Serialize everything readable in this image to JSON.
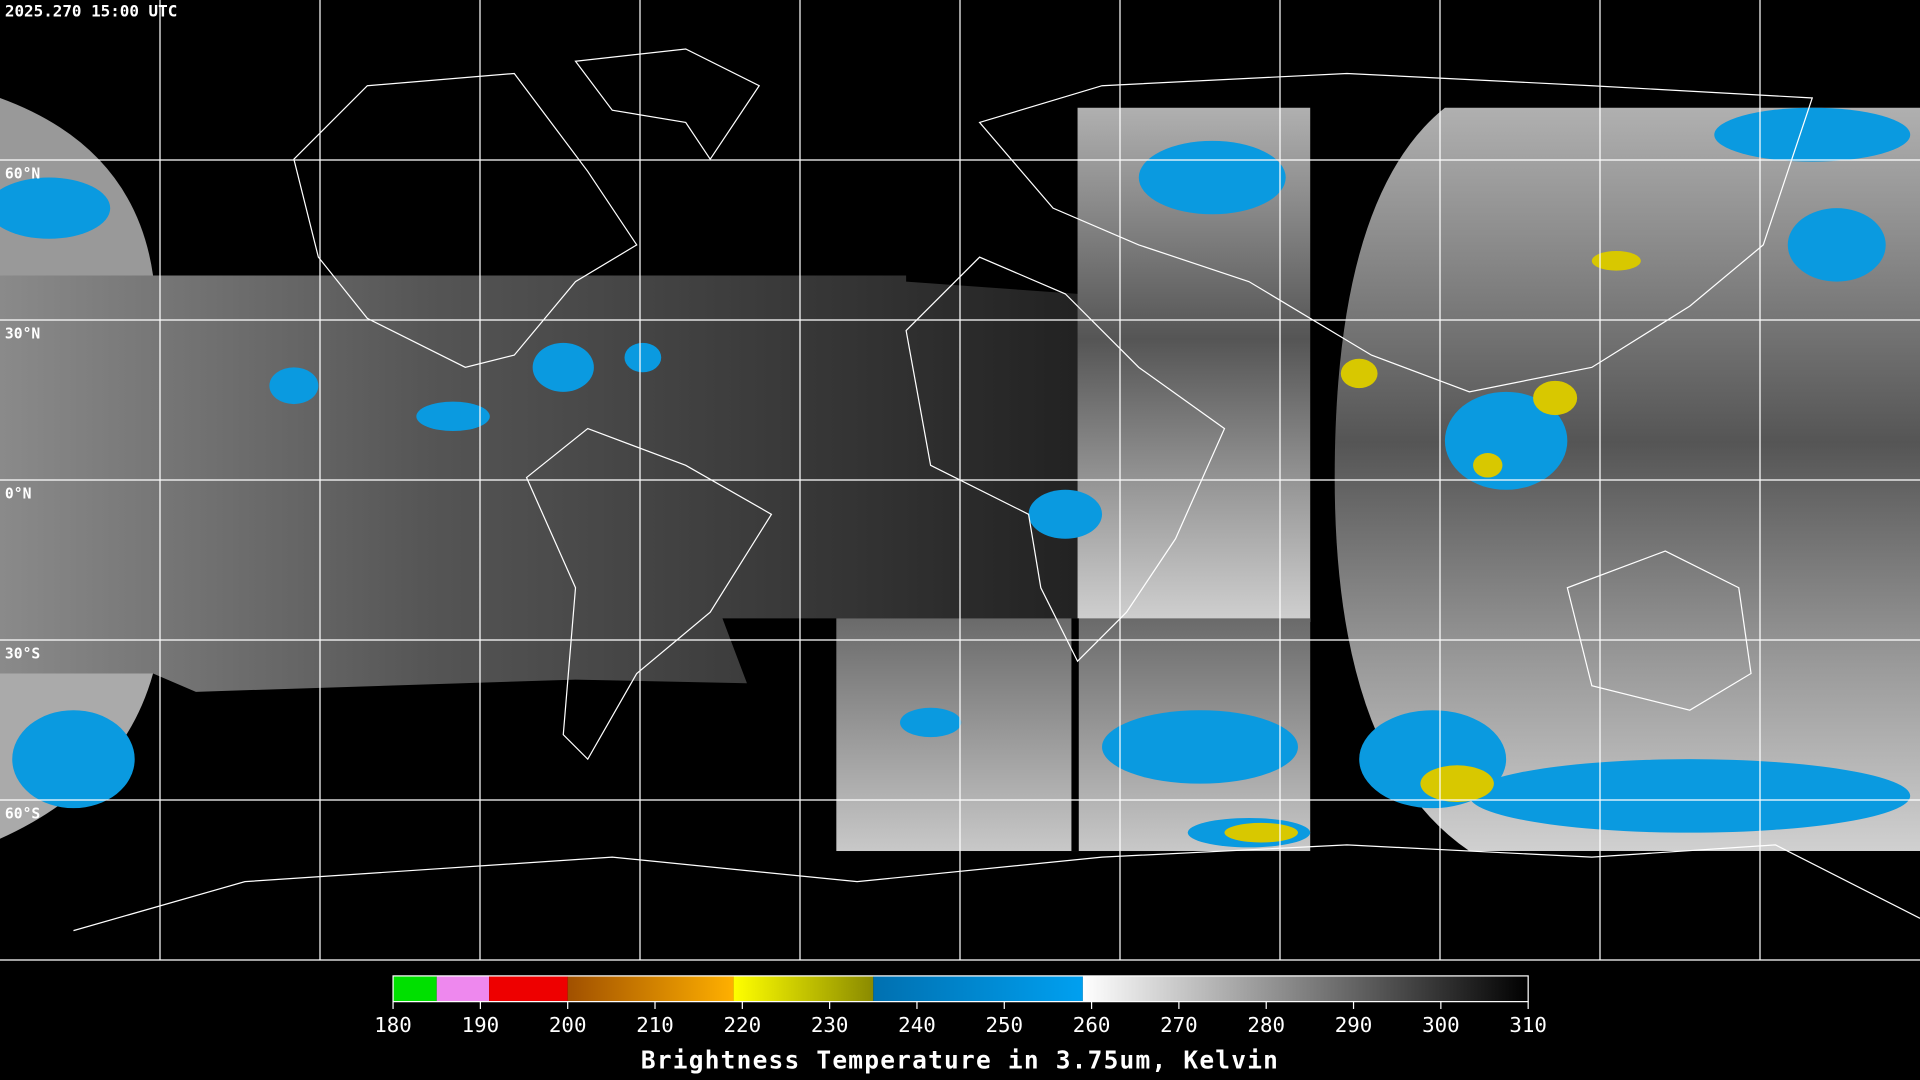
{
  "timestamp": "2025.270 15:00 UTC",
  "map": {
    "projection": "equirectangular",
    "lon_range": [
      -180,
      180
    ],
    "lat_range": [
      -90,
      90
    ],
    "grid_color": "#ffffff",
    "lon_lines": [
      -150,
      -120,
      -90,
      -60,
      -30,
      0,
      30,
      60,
      90,
      120,
      150
    ],
    "lat_lines": [
      {
        "value": 60,
        "label": "60°N"
      },
      {
        "value": 30,
        "label": "30°N"
      },
      {
        "value": 0,
        "label": "0°N"
      },
      {
        "value": -30,
        "label": "30°S"
      },
      {
        "value": -60,
        "label": "60°S"
      }
    ]
  },
  "colorbar": {
    "title": "Brightness Temperature in 3.75um, Kelvin",
    "range": [
      180,
      310
    ],
    "ticks": [
      180,
      190,
      200,
      210,
      220,
      230,
      240,
      250,
      260,
      270,
      280,
      290,
      300,
      310
    ],
    "stops": [
      {
        "from": 180,
        "to": 185,
        "color": "#00e000"
      },
      {
        "from": 185,
        "to": 191,
        "color": "#ee88ee"
      },
      {
        "from": 191,
        "to": 200,
        "color": "#ee0000"
      },
      {
        "from": 200,
        "to": 219,
        "color": "#a05000",
        "color_end": "#ffb000"
      },
      {
        "from": 219,
        "to": 235,
        "color": "#ffff00",
        "color_end": "#8a8a00"
      },
      {
        "from": 235,
        "to": 259,
        "color": "#0070b0",
        "color_end": "#00a0f0"
      },
      {
        "from": 259,
        "to": 310,
        "color": "#ffffff",
        "color_end": "#000000"
      }
    ]
  }
}
